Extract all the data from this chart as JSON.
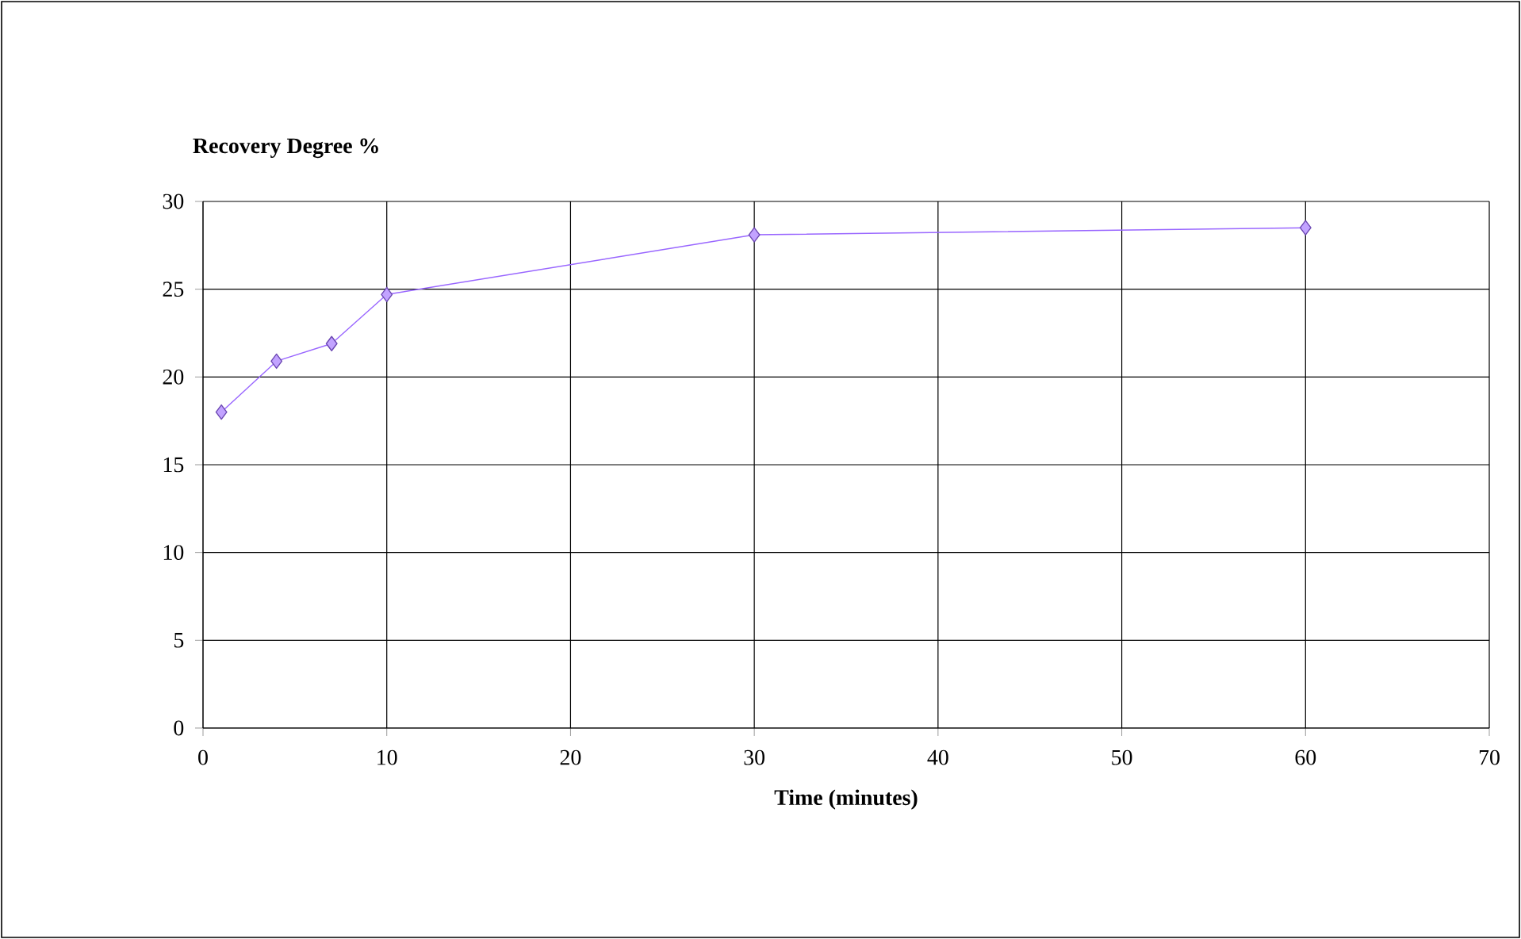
{
  "chart_data": {
    "type": "line",
    "title": "Recovery Degree %",
    "xlabel": "Time (minutes)",
    "x": [
      1,
      4,
      7,
      10,
      30,
      60
    ],
    "series": [
      {
        "color": "#9966ff",
        "values": [
          18,
          20.9,
          21.9,
          24.7,
          28.1,
          28.5
        ]
      }
    ],
    "xlim": [
      0,
      70
    ],
    "xticks": [
      0,
      10,
      20,
      30,
      40,
      50,
      60,
      70
    ],
    "ylim": [
      0,
      30
    ],
    "yticks": [
      0,
      5,
      10,
      15,
      20,
      25,
      30
    ],
    "grid": true,
    "marker": "diamond",
    "line_style": "solid"
  }
}
